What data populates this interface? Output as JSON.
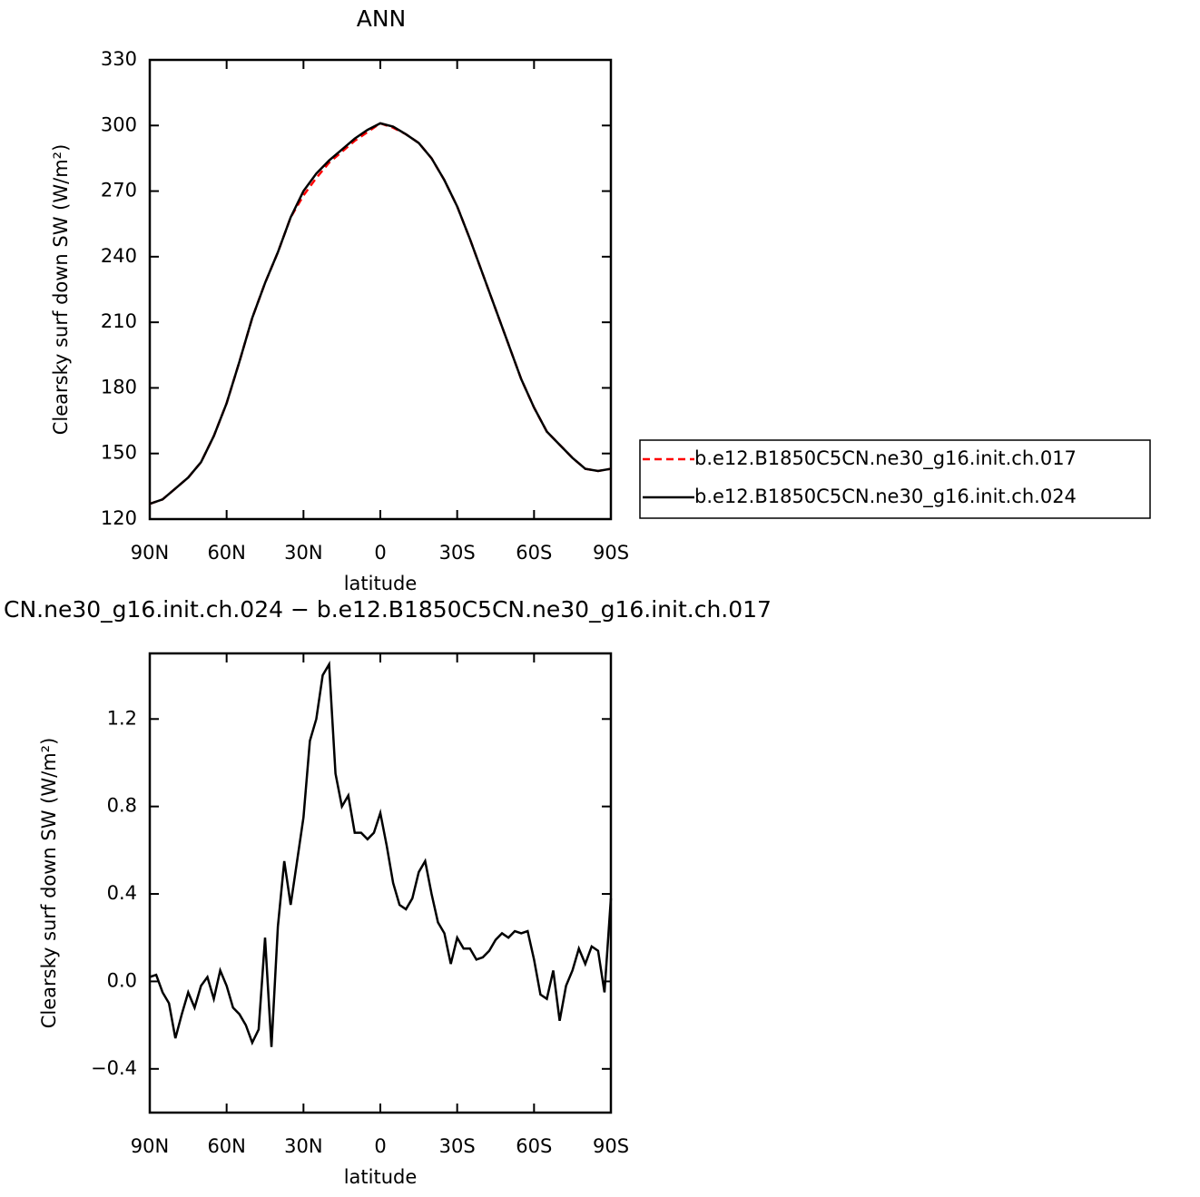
{
  "chart_data": [
    {
      "type": "line",
      "title": "ANN",
      "xlabel": "latitude",
      "ylabel": "Clearsky surf down SW (W/m²)",
      "x": [
        90,
        85,
        80,
        75,
        70,
        65,
        60,
        55,
        50,
        45,
        40,
        35,
        30,
        25,
        20,
        15,
        10,
        5,
        0,
        -5,
        -10,
        -15,
        -20,
        -25,
        -30,
        -35,
        -40,
        -45,
        -50,
        -55,
        -60,
        -65,
        -70,
        -75,
        -80,
        -85,
        -90
      ],
      "series": [
        {
          "name": "b.e12.B1850C5CN.ne30_g16.init.ch.017",
          "color": "#ff0000",
          "line_style": "dashed",
          "values": [
            127,
            129,
            134,
            139,
            146,
            158,
            173,
            192,
            212,
            228,
            242,
            258,
            268,
            276,
            283,
            288,
            293,
            297,
            301,
            299,
            296,
            292,
            285,
            275,
            263,
            248,
            232,
            216,
            200,
            184,
            171,
            160,
            154,
            148,
            143,
            142,
            143
          ]
        },
        {
          "name": "b.e12.B1850C5CN.ne30_g16.init.ch.024",
          "color": "#000000",
          "line_style": "solid",
          "values": [
            127,
            129,
            134,
            139,
            146,
            158,
            173,
            192,
            212,
            228,
            242,
            258,
            270,
            278,
            284,
            289,
            294,
            298,
            301,
            299.5,
            296,
            292,
            285,
            275,
            263,
            248,
            232,
            216,
            200,
            184,
            171,
            160,
            154,
            148,
            143,
            142,
            143
          ]
        }
      ],
      "xlim": [
        90,
        -90
      ],
      "xticks": [
        {
          "value": 90,
          "label": "90N"
        },
        {
          "value": 60,
          "label": "60N"
        },
        {
          "value": 30,
          "label": "30N"
        },
        0,
        {
          "value": -30,
          "label": "30S"
        },
        {
          "value": -60,
          "label": "60S"
        },
        {
          "value": -90,
          "label": "90S"
        }
      ],
      "ylim": [
        120,
        330
      ],
      "yticks": [
        120,
        150,
        180,
        210,
        240,
        270,
        300,
        330
      ],
      "legend": "right"
    },
    {
      "type": "line",
      "title": "CN.ne30_g16.init.ch.024 − b.e12.B1850C5CN.ne30_g16.init.ch.017",
      "xlabel": "latitude",
      "ylabel": "Clearsky surf down SW (W/m²)",
      "x": [
        90,
        87.5,
        85,
        82.5,
        80,
        77.5,
        75,
        72.5,
        70,
        67.5,
        65,
        62.5,
        60,
        57.5,
        55,
        52.5,
        50,
        47.5,
        45,
        42.5,
        40,
        37.5,
        35,
        32.5,
        30,
        27.5,
        25,
        22.5,
        20,
        17.5,
        15,
        12.5,
        10,
        7.5,
        5,
        2.5,
        0,
        -2.5,
        -5,
        -7.5,
        -10,
        -12.5,
        -15,
        -17.5,
        -20,
        -22.5,
        -25,
        -27.5,
        -30,
        -32.5,
        -35,
        -37.5,
        -40,
        -42.5,
        -45,
        -47.5,
        -50,
        -52.5,
        -55,
        -57.5,
        -60,
        -62.5,
        -65,
        -67.5,
        -70,
        -72.5,
        -75,
        -77.5,
        -80,
        -82.5,
        -85,
        -87.5,
        -90
      ],
      "series": [
        {
          "name": null,
          "color": "#000000",
          "line_style": "solid",
          "values": [
            0.02,
            0.03,
            -0.05,
            -0.1,
            -0.26,
            -0.15,
            -0.05,
            -0.12,
            -0.02,
            0.02,
            -0.08,
            0.05,
            -0.02,
            -0.12,
            -0.15,
            -0.2,
            -0.28,
            -0.22,
            0.2,
            -0.3,
            0.25,
            0.55,
            0.35,
            0.55,
            0.75,
            1.1,
            1.2,
            1.4,
            1.45,
            0.95,
            0.8,
            0.85,
            0.68,
            0.68,
            0.65,
            0.68,
            0.77,
            0.62,
            0.45,
            0.35,
            0.33,
            0.38,
            0.5,
            0.55,
            0.4,
            0.27,
            0.22,
            0.08,
            0.2,
            0.15,
            0.15,
            0.1,
            0.11,
            0.14,
            0.19,
            0.22,
            0.2,
            0.23,
            0.22,
            0.23,
            0.1,
            -0.06,
            -0.08,
            0.05,
            -0.18,
            -0.02,
            0.05,
            0.15,
            0.08,
            0.16,
            0.14,
            -0.05,
            0.38
          ]
        }
      ],
      "xlim": [
        90,
        -90
      ],
      "xticks": [
        {
          "value": 90,
          "label": "90N"
        },
        {
          "value": 60,
          "label": "60N"
        },
        {
          "value": 30,
          "label": "30N"
        },
        0,
        {
          "value": -30,
          "label": "30S"
        },
        {
          "value": -60,
          "label": "60S"
        },
        {
          "value": -90,
          "label": "90S"
        }
      ],
      "ylim": [
        -0.6,
        1.5
      ],
      "yticks": [
        {
          "value": -0.4,
          "label": "−0.4"
        },
        {
          "value": 0,
          "label": "0.0"
        },
        0.4,
        0.8,
        1.2
      ]
    }
  ]
}
